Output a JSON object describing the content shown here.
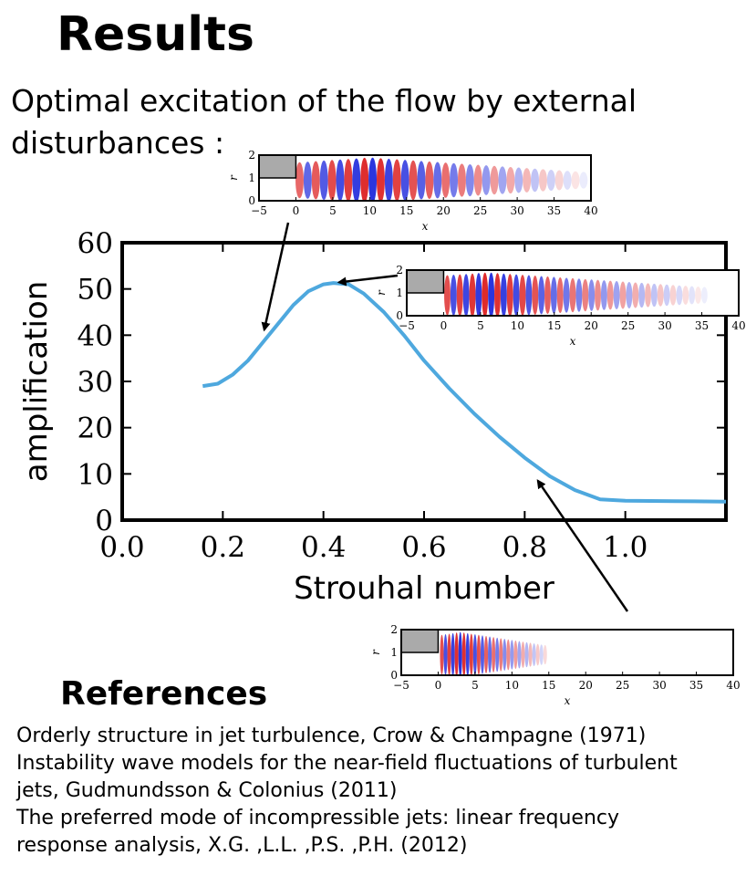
{
  "slide": {
    "title": "Results",
    "subtitle": "Optimal excitation of the flow by external disturbances :"
  },
  "chart_data": {
    "type": "line",
    "xlabel": "Strouhal number",
    "ylabel": "amplification",
    "xlim": [
      0.0,
      1.2
    ],
    "ylim": [
      0,
      60
    ],
    "xticks": [
      "0.0",
      "0.2",
      "0.4",
      "0.6",
      "0.8",
      "1.0"
    ],
    "yticks": [
      "0",
      "10",
      "20",
      "30",
      "40",
      "50",
      "60"
    ],
    "grid": false,
    "color": "#4ea8de",
    "x": [
      0.16,
      0.19,
      0.22,
      0.25,
      0.28,
      0.31,
      0.34,
      0.37,
      0.4,
      0.42,
      0.45,
      0.48,
      0.52,
      0.56,
      0.6,
      0.65,
      0.7,
      0.75,
      0.8,
      0.85,
      0.9,
      0.95,
      1.0,
      1.1,
      1.2
    ],
    "y": [
      29,
      29.5,
      31.5,
      34.5,
      38.5,
      42.5,
      46.5,
      49.5,
      51,
      51.3,
      51,
      49,
      45,
      40,
      34.5,
      28.5,
      23,
      18,
      13.5,
      9.5,
      6.5,
      4.5,
      4.2,
      4.1,
      4.0
    ]
  },
  "insets": [
    {
      "id": "inset-low",
      "xticks": [
        "−5",
        "0",
        "5",
        "10",
        "15",
        "20",
        "25",
        "30",
        "35",
        "40"
      ],
      "yticks": [
        "0",
        "1",
        "2"
      ],
      "xlabel": "x",
      "ylabel": "r",
      "xlim": [
        -5,
        40
      ],
      "extent": 40,
      "center": 10,
      "spacing": 2.2,
      "points_to": {
        "strouhal": 0.28,
        "amplification": 40
      }
    },
    {
      "id": "inset-peak",
      "xticks": [
        "−5",
        "0",
        "5",
        "10",
        "15",
        "20",
        "25",
        "30",
        "35",
        "40"
      ],
      "yticks": [
        "0",
        "1",
        "2"
      ],
      "xlabel": "x",
      "ylabel": "r",
      "xlim": [
        -5,
        40
      ],
      "extent": 36,
      "center": 6,
      "spacing": 1.7,
      "points_to": {
        "strouhal": 0.42,
        "amplification": 51.3
      }
    },
    {
      "id": "inset-high",
      "xticks": [
        "−5",
        "0",
        "5",
        "10",
        "15",
        "20",
        "25",
        "30",
        "35",
        "40"
      ],
      "yticks": [
        "0",
        "1",
        "2"
      ],
      "xlabel": "x",
      "ylabel": "r",
      "xlim": [
        -5,
        40
      ],
      "extent": 15,
      "center": 3,
      "spacing": 1.0,
      "points_to": {
        "strouhal": 0.82,
        "amplification": 9.5
      }
    }
  ],
  "references": {
    "heading": "References",
    "items": [
      "Orderly structure in jet turbulence, Crow & Champagne (1971)",
      "Instability wave models for the near-field fluctuations of turbulent\njets, Gudmundsson & Colonius (2011)",
      "The preferred mode of incompressible jets: linear frequency\nresponse analysis, X.G. ,L.L. ,P.S. ,P.H. (2012)"
    ]
  }
}
